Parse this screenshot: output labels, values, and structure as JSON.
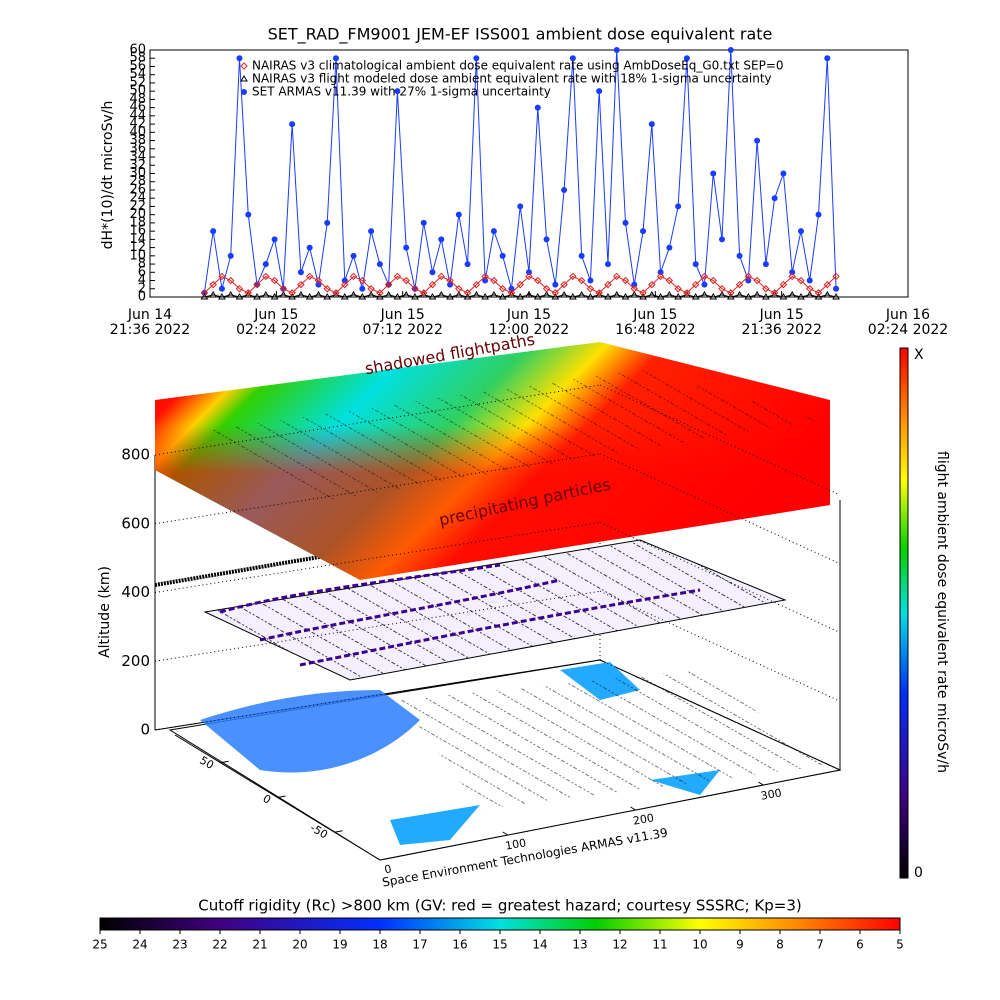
{
  "chart_data": [
    {
      "type": "line",
      "title": "SET_RAD_FM9001  JEM-EF ISS001 ambient dose equivalent rate",
      "y_label": "dH*(10)/dt microSv/h",
      "xlim": [
        "2022-06-14T21:36",
        "2022-06-16T02:24"
      ],
      "xticks": [
        {
          "value": "2022-06-14T21:36",
          "label": "Jun 14\n21:36 2022"
        },
        {
          "value": "2022-06-15T02:24",
          "label": "Jun 15\n02:24 2022"
        },
        {
          "value": "2022-06-15T07:12",
          "label": "Jun 15\n07:12 2022"
        },
        {
          "value": "2022-06-15T12:00",
          "label": "Jun 15\n12:00 2022"
        },
        {
          "value": "2022-06-15T16:48",
          "label": "Jun 15\n16:48 2022"
        },
        {
          "value": "2022-06-15T21:36",
          "label": "Jun 15\n21:36 2022"
        },
        {
          "value": "2022-06-16T02:24",
          "label": "Jun 16\n02:24 2022"
        }
      ],
      "ylim": [
        0,
        60
      ],
      "yticks": [
        0,
        2,
        4,
        6,
        8,
        10,
        12,
        14,
        16,
        18,
        20,
        22,
        24,
        26,
        28,
        30,
        32,
        34,
        36,
        38,
        40,
        42,
        44,
        46,
        48,
        50,
        52,
        54,
        56,
        58,
        60
      ],
      "x": [
        "2022-06-14T23:40",
        "2022-06-15T00:00",
        "2022-06-15T00:20",
        "2022-06-15T00:40",
        "2022-06-15T01:00",
        "2022-06-15T01:20",
        "2022-06-15T01:40",
        "2022-06-15T02:00",
        "2022-06-15T02:20",
        "2022-06-15T02:40",
        "2022-06-15T03:00",
        "2022-06-15T03:20",
        "2022-06-15T03:40",
        "2022-06-15T04:00",
        "2022-06-15T04:20",
        "2022-06-15T04:40",
        "2022-06-15T05:00",
        "2022-06-15T05:20",
        "2022-06-15T05:40",
        "2022-06-15T06:00",
        "2022-06-15T06:20",
        "2022-06-15T06:40",
        "2022-06-15T07:00",
        "2022-06-15T07:20",
        "2022-06-15T07:40",
        "2022-06-15T08:00",
        "2022-06-15T08:20",
        "2022-06-15T08:40",
        "2022-06-15T09:00",
        "2022-06-15T09:20",
        "2022-06-15T09:40",
        "2022-06-15T10:00",
        "2022-06-15T10:20",
        "2022-06-15T10:40",
        "2022-06-15T11:00",
        "2022-06-15T11:20",
        "2022-06-15T11:40",
        "2022-06-15T12:00",
        "2022-06-15T12:20",
        "2022-06-15T12:40",
        "2022-06-15T13:00",
        "2022-06-15T13:20",
        "2022-06-15T13:40",
        "2022-06-15T14:00",
        "2022-06-15T14:20",
        "2022-06-15T14:40",
        "2022-06-15T15:00",
        "2022-06-15T15:20",
        "2022-06-15T15:40",
        "2022-06-15T16:00",
        "2022-06-15T16:20",
        "2022-06-15T16:40",
        "2022-06-15T17:00",
        "2022-06-15T17:20",
        "2022-06-15T17:40",
        "2022-06-15T18:00",
        "2022-06-15T18:20",
        "2022-06-15T18:40",
        "2022-06-15T19:00",
        "2022-06-15T19:20",
        "2022-06-15T19:40",
        "2022-06-15T20:00",
        "2022-06-15T20:20",
        "2022-06-15T20:40",
        "2022-06-15T21:00",
        "2022-06-15T21:20",
        "2022-06-15T21:40",
        "2022-06-15T22:00",
        "2022-06-15T22:20",
        "2022-06-15T22:40",
        "2022-06-15T23:00",
        "2022-06-15T23:20",
        "2022-06-15T23:40"
      ],
      "series": [
        {
          "name": "NAIRAS v3 climatological ambient dose equivalent rate using AmbDoseEq_G0.txt SEP=0",
          "color": "#e02020",
          "marker": "diamond",
          "values": [
            1,
            3,
            5,
            4,
            2,
            1,
            3,
            5,
            4,
            2,
            1,
            3,
            5,
            4,
            2,
            1,
            3,
            5,
            4,
            2,
            1,
            3,
            5,
            4,
            2,
            1,
            3,
            5,
            4,
            2,
            1,
            3,
            5,
            4,
            2,
            1,
            3,
            5,
            4,
            2,
            1,
            3,
            5,
            4,
            2,
            1,
            3,
            5,
            4,
            2,
            1,
            3,
            5,
            4,
            2,
            1,
            3,
            5,
            4,
            2,
            1,
            3,
            5,
            4,
            2,
            1,
            3,
            5,
            4,
            2,
            1,
            3,
            5
          ]
        },
        {
          "name": "NAIRAS v3 flight modeled dose ambient equivalent rate with 18% 1-sigma uncertainty",
          "color": "#000000",
          "marker": "triangle",
          "values": [
            0,
            0.5,
            0,
            0.5,
            0,
            0.5,
            0,
            0.5,
            0,
            0.5,
            0,
            0.5,
            0,
            0.5,
            0,
            0.5,
            0,
            0.5,
            0,
            0.5,
            0,
            0.5,
            0,
            0.5,
            0,
            0.5,
            0,
            0.5,
            0,
            0.5,
            0,
            0.5,
            0,
            0.5,
            0,
            0.5,
            0,
            0.5,
            0,
            0.5,
            0,
            0.5,
            0,
            0.5,
            0,
            0.5,
            0,
            0.5,
            0,
            0.5,
            0,
            0.5,
            0,
            0.5,
            0,
            0.5,
            0,
            0.5,
            0,
            0.5,
            0,
            0.5,
            0,
            0.5,
            0,
            0.5,
            0,
            0.5,
            0,
            0.5,
            0,
            0.5,
            0
          ]
        },
        {
          "name": "SET ARMAS v11.39 with 27% 1-sigma uncertainty",
          "color": "#1a3cff",
          "marker": "circle",
          "values": [
            1,
            16,
            2,
            10,
            58,
            20,
            3,
            8,
            14,
            2,
            42,
            6,
            12,
            3,
            18,
            58,
            4,
            10,
            2,
            16,
            8,
            3,
            50,
            12,
            2,
            18,
            6,
            14,
            3,
            20,
            8,
            58,
            4,
            16,
            10,
            2,
            22,
            6,
            46,
            14,
            3,
            26,
            58,
            10,
            4,
            50,
            8,
            60,
            18,
            3,
            16,
            42,
            6,
            12,
            22,
            58,
            8,
            3,
            30,
            14,
            60,
            10,
            4,
            38,
            8,
            24,
            30,
            6,
            16,
            4,
            20,
            58,
            2
          ]
        }
      ]
    },
    {
      "type": "surface3d",
      "z_label": "Altitude (km)",
      "zlim": [
        0,
        800
      ],
      "zticks": [
        0,
        200,
        400,
        600,
        800
      ],
      "ylim": [
        90,
        -90
      ],
      "yticks": [
        50,
        0,
        -50
      ],
      "xlim": [
        0,
        360
      ],
      "xticks": [
        0,
        100,
        200,
        300
      ],
      "annotations": [
        "shadowed flightpaths",
        "precipitating particles"
      ],
      "footer": "Space Environment Technologies ARMAS v11.39",
      "colorbar": {
        "title": "flight ambient dose equivalent rate microSv/h",
        "top_label": "X",
        "bottom_label": "0"
      },
      "rigidity_bar": {
        "title": "Cutoff rigidity (Rc) >800 km (GV: red = greatest hazard; courtesy SSSRC; Kp=3)",
        "lim": [
          25,
          5
        ],
        "ticks": [
          25,
          24,
          23,
          22,
          21,
          20,
          19,
          18,
          17,
          16,
          15,
          14,
          13,
          12,
          11,
          10,
          9,
          8,
          7,
          6,
          5
        ]
      }
    }
  ]
}
